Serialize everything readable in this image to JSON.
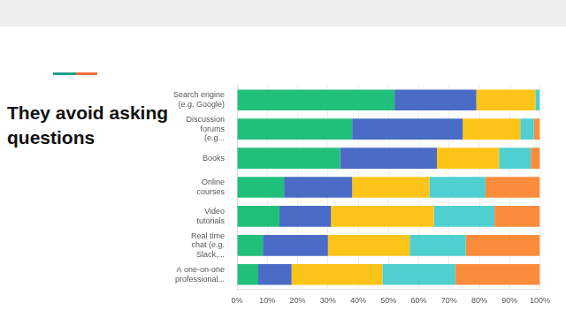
{
  "chart_data": {
    "type": "bar",
    "title": "They avoid asking questions",
    "orientation": "horizontal",
    "stacked": true,
    "grid": true,
    "categories": [
      "Search engine (e.g. Google)",
      "Discussion forums (e.g...",
      "Books",
      "Online courses",
      "Video tutorials",
      "Real time chat (e.g. Slack,...",
      "A one-on-one professional..."
    ],
    "series": [
      {
        "color": "#21c07a",
        "values": [
          52,
          38,
          34,
          15.5,
          14,
          8.5,
          7
        ]
      },
      {
        "color": "#4a6bc6",
        "values": [
          27,
          36.5,
          32,
          22.5,
          17,
          21.5,
          11
        ]
      },
      {
        "color": "#fcc419",
        "values": [
          19.5,
          19,
          20.5,
          25.5,
          34,
          27,
          30
        ]
      },
      {
        "color": "#4fcfcf",
        "values": [
          1.5,
          4.5,
          10.5,
          18.5,
          20,
          18.5,
          24
        ]
      },
      {
        "color": "#fb8c3c",
        "values": [
          0,
          2,
          3,
          18,
          15,
          24.5,
          28
        ]
      }
    ],
    "xlim": [
      0,
      100
    ],
    "xticks": [
      {
        "value": 0,
        "label": "0%"
      },
      {
        "value": 10,
        "label": "10%"
      },
      {
        "value": 20,
        "label": "20%"
      },
      {
        "value": 30,
        "label": "30%"
      },
      {
        "value": 40,
        "label": "40%"
      },
      {
        "value": 50,
        "label": "50%"
      },
      {
        "value": 60,
        "label": "60%"
      },
      {
        "value": 70,
        "label": "70%"
      },
      {
        "value": 80,
        "label": "80%"
      },
      {
        "value": 90,
        "label": "90%"
      },
      {
        "value": 100,
        "label": "100%"
      }
    ]
  }
}
